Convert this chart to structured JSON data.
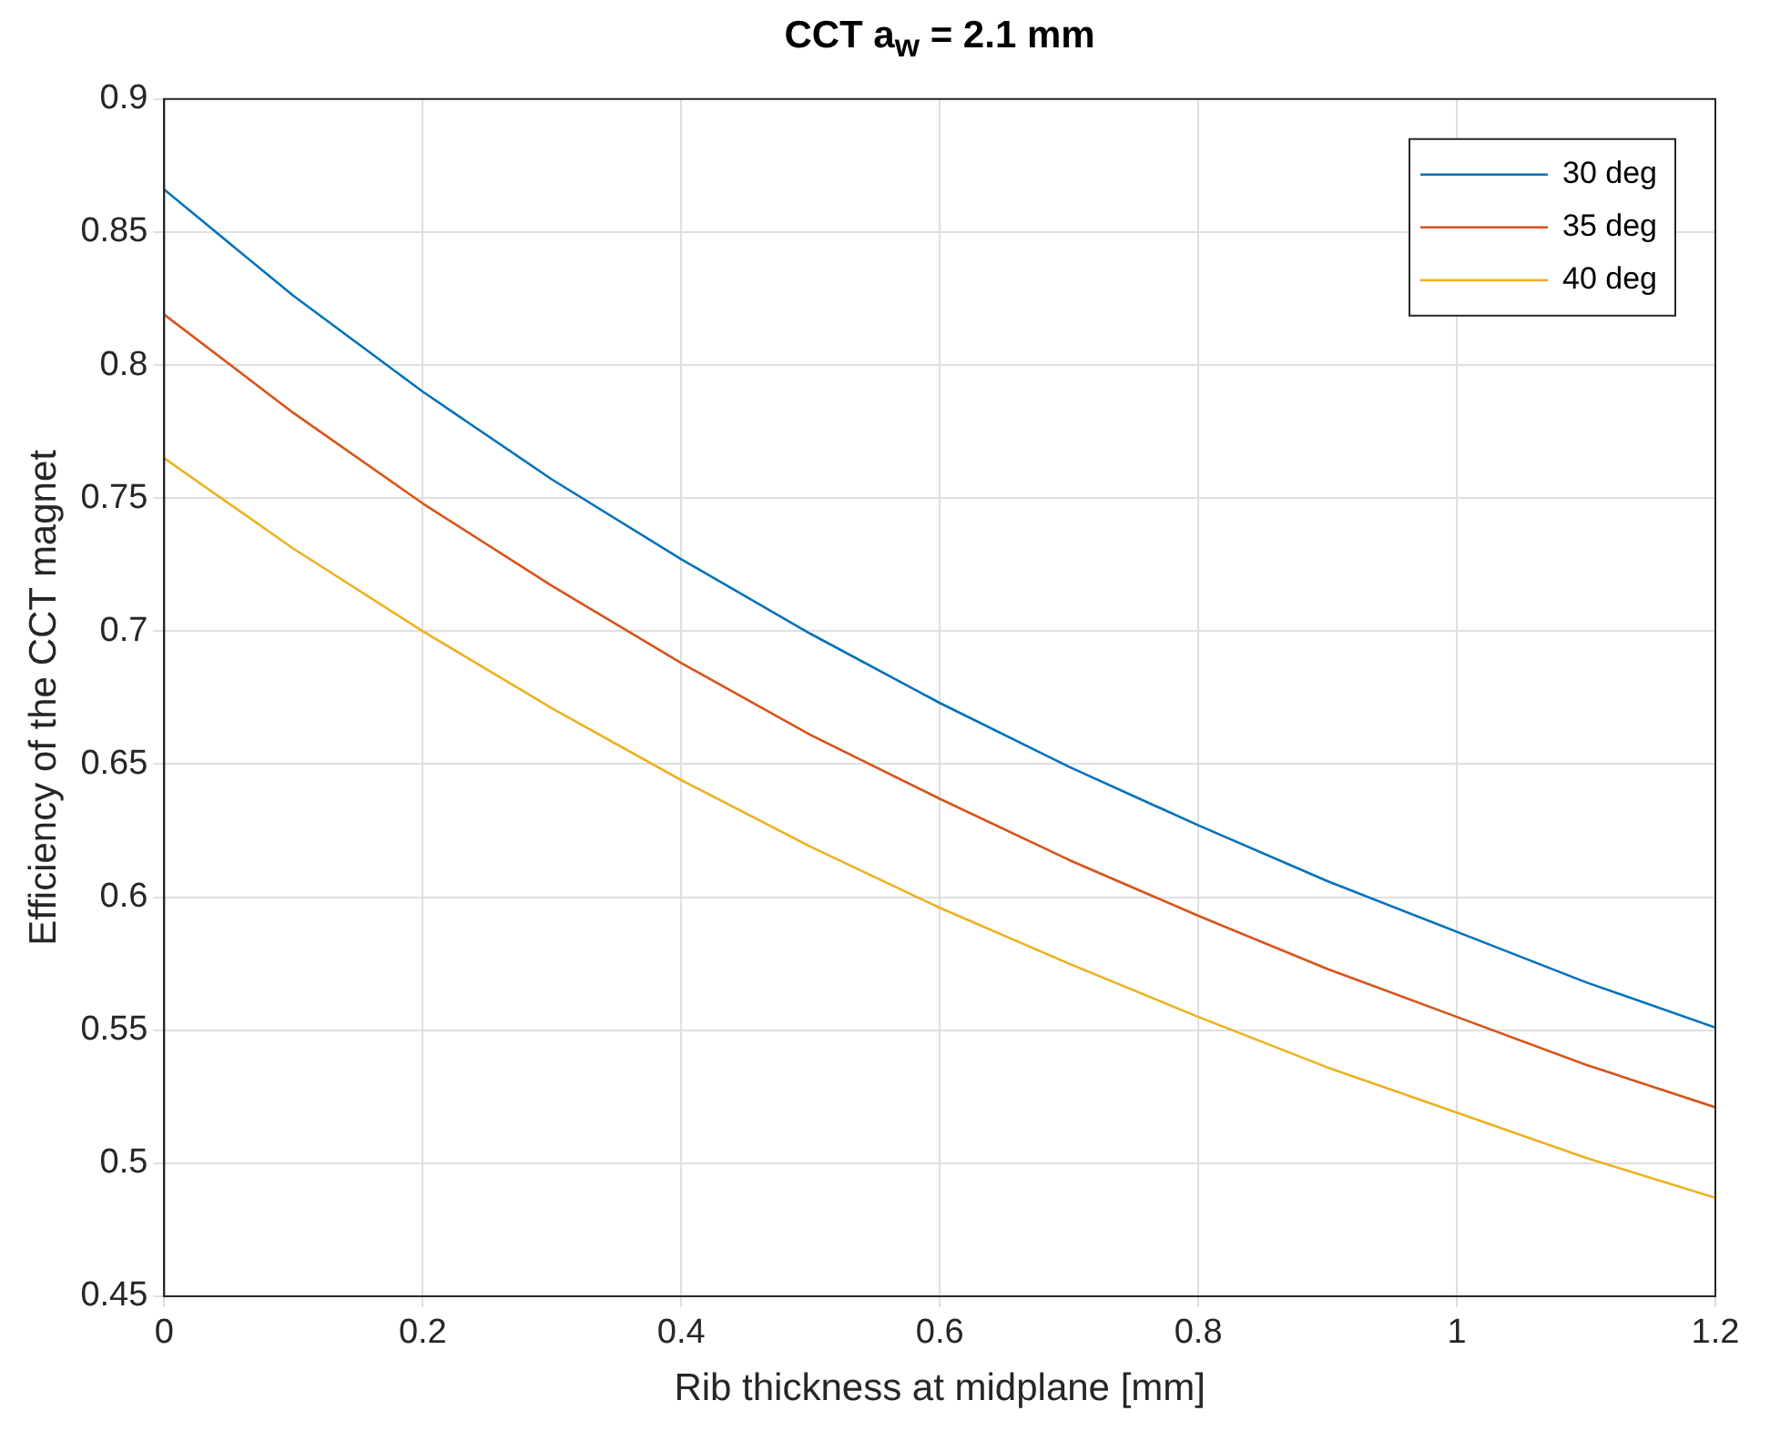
{
  "chart_data": {
    "type": "line",
    "title": "CCT a$_{w}$ = 2.1 mm",
    "xlabel": "Rib thickness at midplane [mm]",
    "ylabel": "Efficiency of the CCT magnet",
    "x": [
      0,
      0.1,
      0.2,
      0.3,
      0.4,
      0.5,
      0.6,
      0.7,
      0.8,
      0.9,
      1.0,
      1.1,
      1.2
    ],
    "series": [
      {
        "name": "30 deg",
        "color": "#0072bd",
        "values": [
          0.866,
          0.826,
          0.79,
          0.757,
          0.727,
          0.699,
          0.673,
          0.649,
          0.627,
          0.606,
          0.587,
          0.568,
          0.551
        ]
      },
      {
        "name": "35 deg",
        "color": "#d95319",
        "values": [
          0.819,
          0.782,
          0.748,
          0.717,
          0.688,
          0.661,
          0.637,
          0.614,
          0.593,
          0.573,
          0.555,
          0.537,
          0.521
        ]
      },
      {
        "name": "40 deg",
        "color": "#edb120",
        "values": [
          0.765,
          0.731,
          0.7,
          0.671,
          0.644,
          0.619,
          0.596,
          0.575,
          0.555,
          0.536,
          0.519,
          0.502,
          0.487
        ]
      }
    ],
    "xlim": [
      0,
      1.2
    ],
    "xticks": [
      0,
      0.2,
      0.4,
      0.6,
      0.8,
      1,
      1.2
    ],
    "ylim": [
      0.45,
      0.9
    ],
    "yticks": [
      0.45,
      0.5,
      0.55,
      0.6,
      0.65,
      0.7,
      0.75,
      0.8,
      0.85,
      0.9
    ],
    "grid": true,
    "legend": "top right",
    "marker": "none",
    "line_style": "solid"
  }
}
